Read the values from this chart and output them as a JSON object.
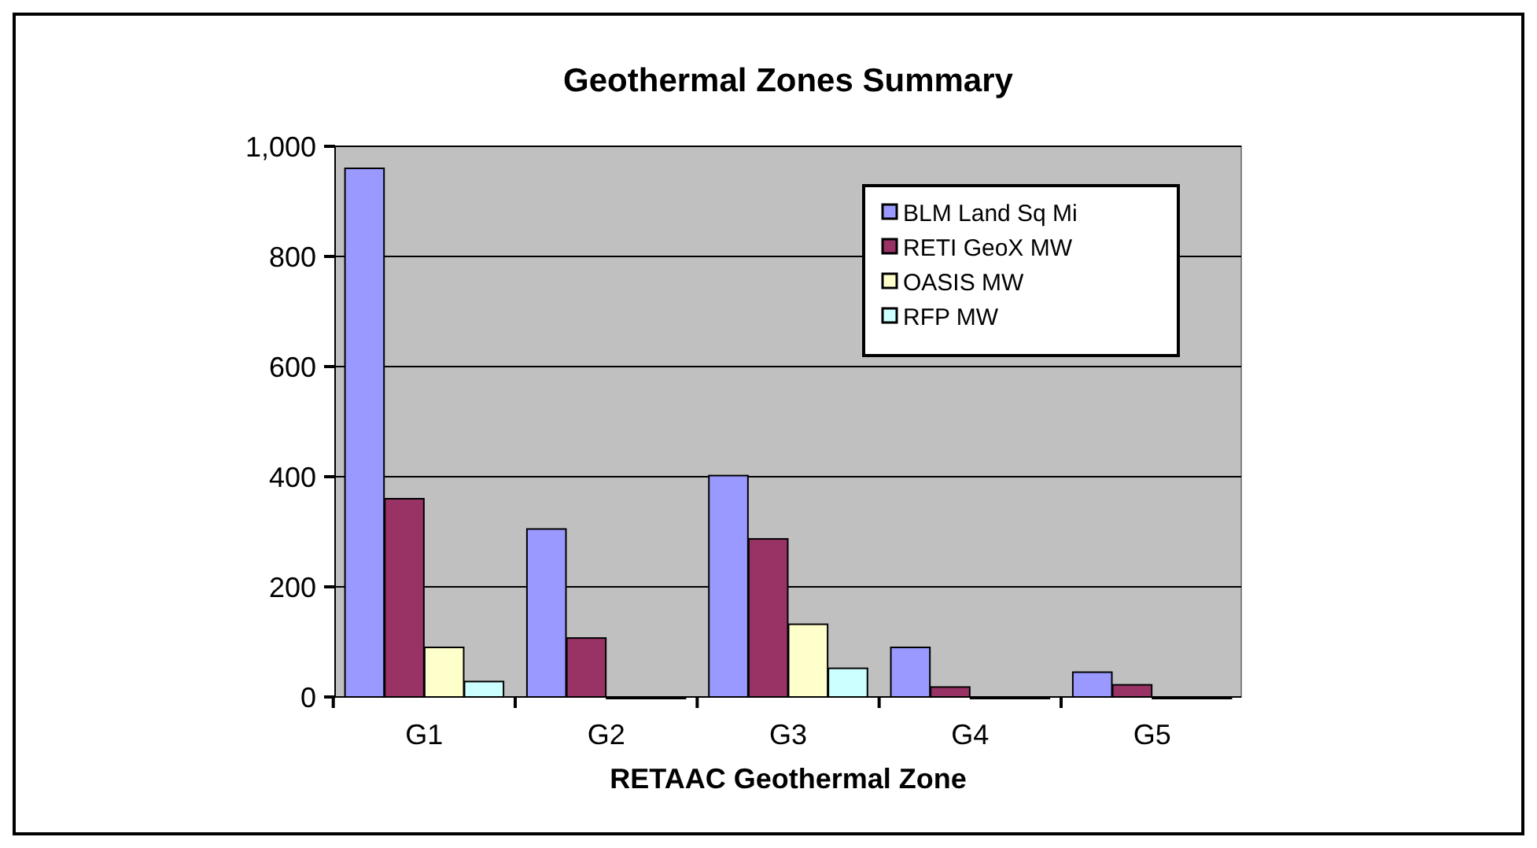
{
  "chart_data": {
    "type": "bar",
    "title": "Geothermal Zones Summary",
    "xlabel": "RETAAC Geothermal Zone",
    "categories": [
      "G1",
      "G2",
      "G3",
      "G4",
      "G5"
    ],
    "series": [
      {
        "name": "BLM Land Sq Mi",
        "color": "#9999ff",
        "values": [
          960,
          305,
          402,
          90,
          45
        ]
      },
      {
        "name": "RETI GeoX MW",
        "color": "#993366",
        "values": [
          360,
          107,
          287,
          18,
          22
        ]
      },
      {
        "name": "OASIS MW",
        "color": "#ffffcc",
        "values": [
          90,
          0,
          132,
          0,
          0
        ]
      },
      {
        "name": "RFP MW",
        "color": "#ccffff",
        "values": [
          28,
          0,
          52,
          0,
          0
        ]
      }
    ],
    "ylim": [
      0,
      1000
    ],
    "yticks": [
      0,
      200,
      400,
      600,
      800,
      {
        "value": 1000,
        "label": "1,000"
      }
    ],
    "grid": "y",
    "legend": "top right"
  }
}
